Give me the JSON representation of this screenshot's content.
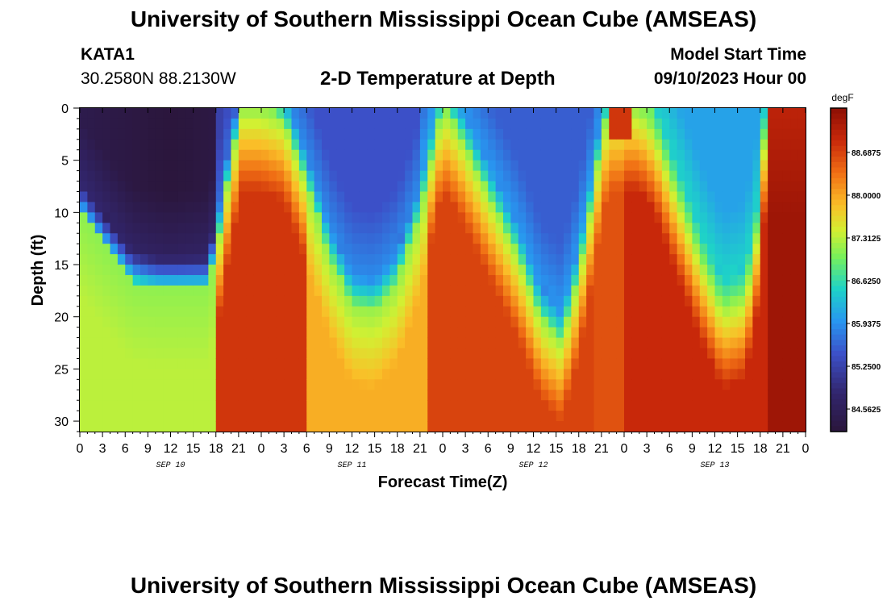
{
  "header": {
    "title": "University of Southern Mississippi Ocean Cube (AMSEAS)",
    "station_id": "KATA1",
    "coordinates": "30.2580N  88.2130W",
    "plot_title": "2-D Temperature at Depth",
    "model_label": "Model Start Time",
    "model_start": "09/10/2023 Hour 00"
  },
  "footer": {
    "title": "University of Southern Mississippi Ocean Cube (AMSEAS)"
  },
  "chart_data": {
    "type": "heatmap",
    "title": "2-D Temperature at Depth",
    "xlabel": "Forecast Time(Z)",
    "ylabel": "Depth (ft)",
    "x_tick_labels": [
      "0",
      "3",
      "6",
      "9",
      "12",
      "15",
      "18",
      "21",
      "0",
      "3",
      "6",
      "9",
      "12",
      "15",
      "18",
      "21",
      "0",
      "3",
      "6",
      "9",
      "12",
      "15",
      "18",
      "21",
      "0",
      "3",
      "6",
      "9",
      "12",
      "15",
      "18",
      "21",
      "0"
    ],
    "x_hours_range": [
      0,
      96
    ],
    "date_labels": [
      {
        "label": "SEP 10",
        "hour": 12
      },
      {
        "label": "SEP 11",
        "hour": 36
      },
      {
        "label": "SEP 12",
        "hour": 60
      },
      {
        "label": "SEP 13",
        "hour": 84
      }
    ],
    "y_range_ft": [
      0,
      31
    ],
    "y_ticks": [
      0,
      5,
      10,
      15,
      20,
      25,
      30
    ],
    "colorbar": {
      "unit": "degF",
      "min": 84.2,
      "max": 89.4,
      "ticks": [
        "88.6875",
        "88.0000",
        "87.3125",
        "86.6250",
        "85.9375",
        "85.2500",
        "84.5625"
      ],
      "tick_values": [
        88.6875,
        88.0,
        87.3125,
        86.625,
        85.9375,
        85.25,
        84.5625
      ]
    },
    "cold_layer": {
      "description_hours": [
        0,
        96
      ],
      "keypoints": [
        {
          "hour": 0,
          "depth": 10
        },
        {
          "hour": 3,
          "depth": 13
        },
        {
          "hour": 7,
          "depth": 16.5
        },
        {
          "hour": 10,
          "depth": 17
        },
        {
          "hour": 13,
          "depth": 17
        },
        {
          "hour": 16.5,
          "depth": 17
        },
        {
          "hour": 18,
          "depth": 14
        },
        {
          "hour": 20,
          "depth": 5
        },
        {
          "hour": 21.5,
          "depth": 0
        },
        {
          "hour": 24,
          "depth": 0
        },
        {
          "hour": 27,
          "depth": 1
        },
        {
          "hour": 30,
          "depth": 7
        },
        {
          "hour": 33,
          "depth": 14
        },
        {
          "hour": 36,
          "depth": 18.5
        },
        {
          "hour": 39,
          "depth": 19
        },
        {
          "hour": 42,
          "depth": 16.5
        },
        {
          "hour": 45,
          "depth": 10
        },
        {
          "hour": 47,
          "depth": 3
        },
        {
          "hour": 48,
          "depth": 0
        },
        {
          "hour": 50,
          "depth": 2
        },
        {
          "hour": 54,
          "depth": 8
        },
        {
          "hour": 58,
          "depth": 14
        },
        {
          "hour": 61,
          "depth": 20
        },
        {
          "hour": 63.5,
          "depth": 22
        },
        {
          "hour": 65,
          "depth": 19
        },
        {
          "hour": 67,
          "depth": 12
        },
        {
          "hour": 69,
          "depth": 3
        },
        {
          "hour": 70,
          "depth": 0
        },
        {
          "hour": 72,
          "depth": 0
        },
        {
          "hour": 74,
          "depth": 0
        },
        {
          "hour": 76,
          "depth": 2
        },
        {
          "hour": 79,
          "depth": 8
        },
        {
          "hour": 82,
          "depth": 14
        },
        {
          "hour": 85,
          "depth": 19
        },
        {
          "hour": 88,
          "depth": 18
        },
        {
          "hour": 89.5,
          "depth": 12
        },
        {
          "hour": 90.5,
          "depth": 3
        },
        {
          "hour": 91,
          "depth": 0
        },
        {
          "hour": 96,
          "depth": 0
        }
      ]
    }
  }
}
